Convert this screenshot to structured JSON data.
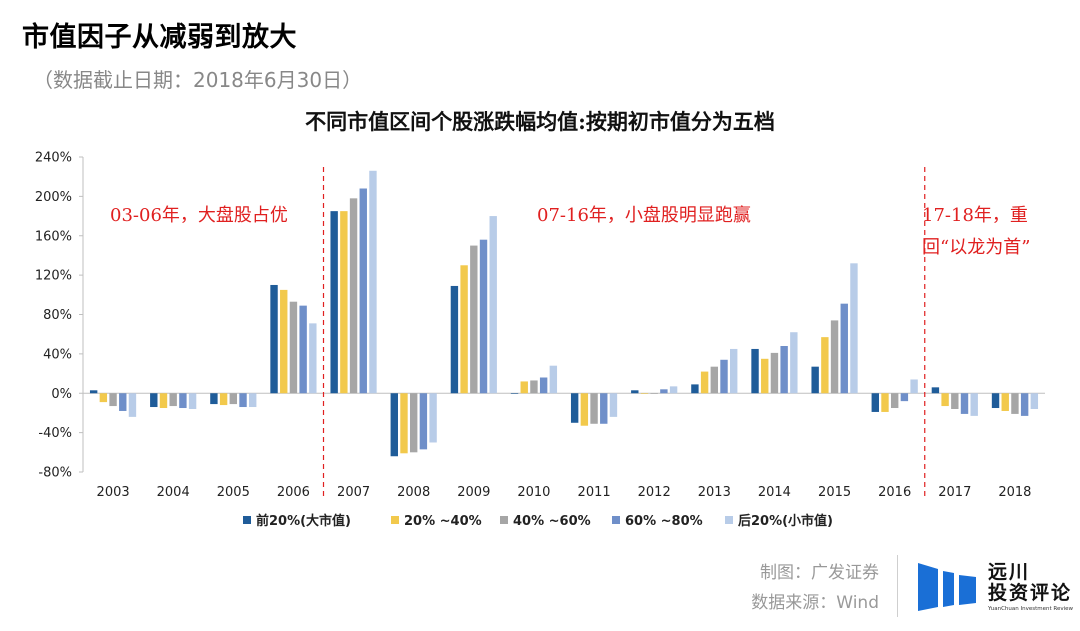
{
  "page": {
    "heading": "市值因子从减弱到放大",
    "subheading": "（数据截止日期：2018年6月30日）"
  },
  "chart_data": {
    "type": "bar",
    "title": "不同市值区间个股涨跌幅均值:按期初市值分为五档",
    "categories": [
      "2003",
      "2004",
      "2005",
      "2006",
      "2007",
      "2008",
      "2009",
      "2010",
      "2011",
      "2012",
      "2013",
      "2014",
      "2015",
      "2016",
      "2017",
      "2018"
    ],
    "series": [
      {
        "name": "前20%(大市值)",
        "color": "#1f5c99",
        "values": [
          3,
          -14,
          -11,
          110,
          185,
          -64,
          109,
          0,
          -30,
          3,
          9,
          45,
          27,
          -19,
          6,
          -15
        ]
      },
      {
        "name": "20% ~40%",
        "color": "#f2c94c",
        "values": [
          -9,
          -15,
          -12,
          105,
          185,
          -61,
          130,
          12,
          -33,
          0,
          22,
          35,
          57,
          -19,
          -13,
          -18
        ]
      },
      {
        "name": "40% ~60%",
        "color": "#a6a6a6",
        "values": [
          -13,
          -13,
          -11,
          93,
          198,
          -60,
          150,
          13,
          -31,
          0,
          27,
          41,
          74,
          -15,
          -16,
          -21
        ]
      },
      {
        "name": "60% ~80%",
        "color": "#6f8fc9",
        "values": [
          -18,
          -15,
          -14,
          89,
          208,
          -57,
          156,
          16,
          -31,
          4,
          34,
          48,
          91,
          -8,
          -21,
          -23
        ]
      },
      {
        "name": "后20%(小市值)",
        "color": "#b8cce8",
        "values": [
          -24,
          -16,
          -14,
          71,
          226,
          -50,
          180,
          28,
          -24,
          7,
          45,
          62,
          132,
          14,
          -23,
          -16
        ]
      }
    ],
    "y_axis": {
      "min": -80,
      "max": 240,
      "step": 40,
      "tick_labels": [
        "-80%",
        "-40%",
        "0%",
        "40%",
        "80%",
        "120%",
        "160%",
        "200%",
        "240%"
      ]
    },
    "annotations": [
      {
        "text": "03-06年，大盘股占优",
        "color": "#e02020"
      },
      {
        "text": "07-16年，小盘股明显跑赢",
        "color": "#e02020"
      },
      {
        "text_lines": [
          "17-18年，重",
          "回“以龙为首”"
        ],
        "color": "#e02020"
      }
    ],
    "divider_after_categories": [
      "2006",
      "2016"
    ],
    "legend_position": "bottom"
  },
  "footer": {
    "maker": "制图：广发证券",
    "source": "数据来源：Wind"
  },
  "brand": {
    "name_line1": "远川",
    "name_line2": "投资评论",
    "tagline": "YuanChuan Investment Review",
    "logo_color": "#1a6fd6"
  }
}
